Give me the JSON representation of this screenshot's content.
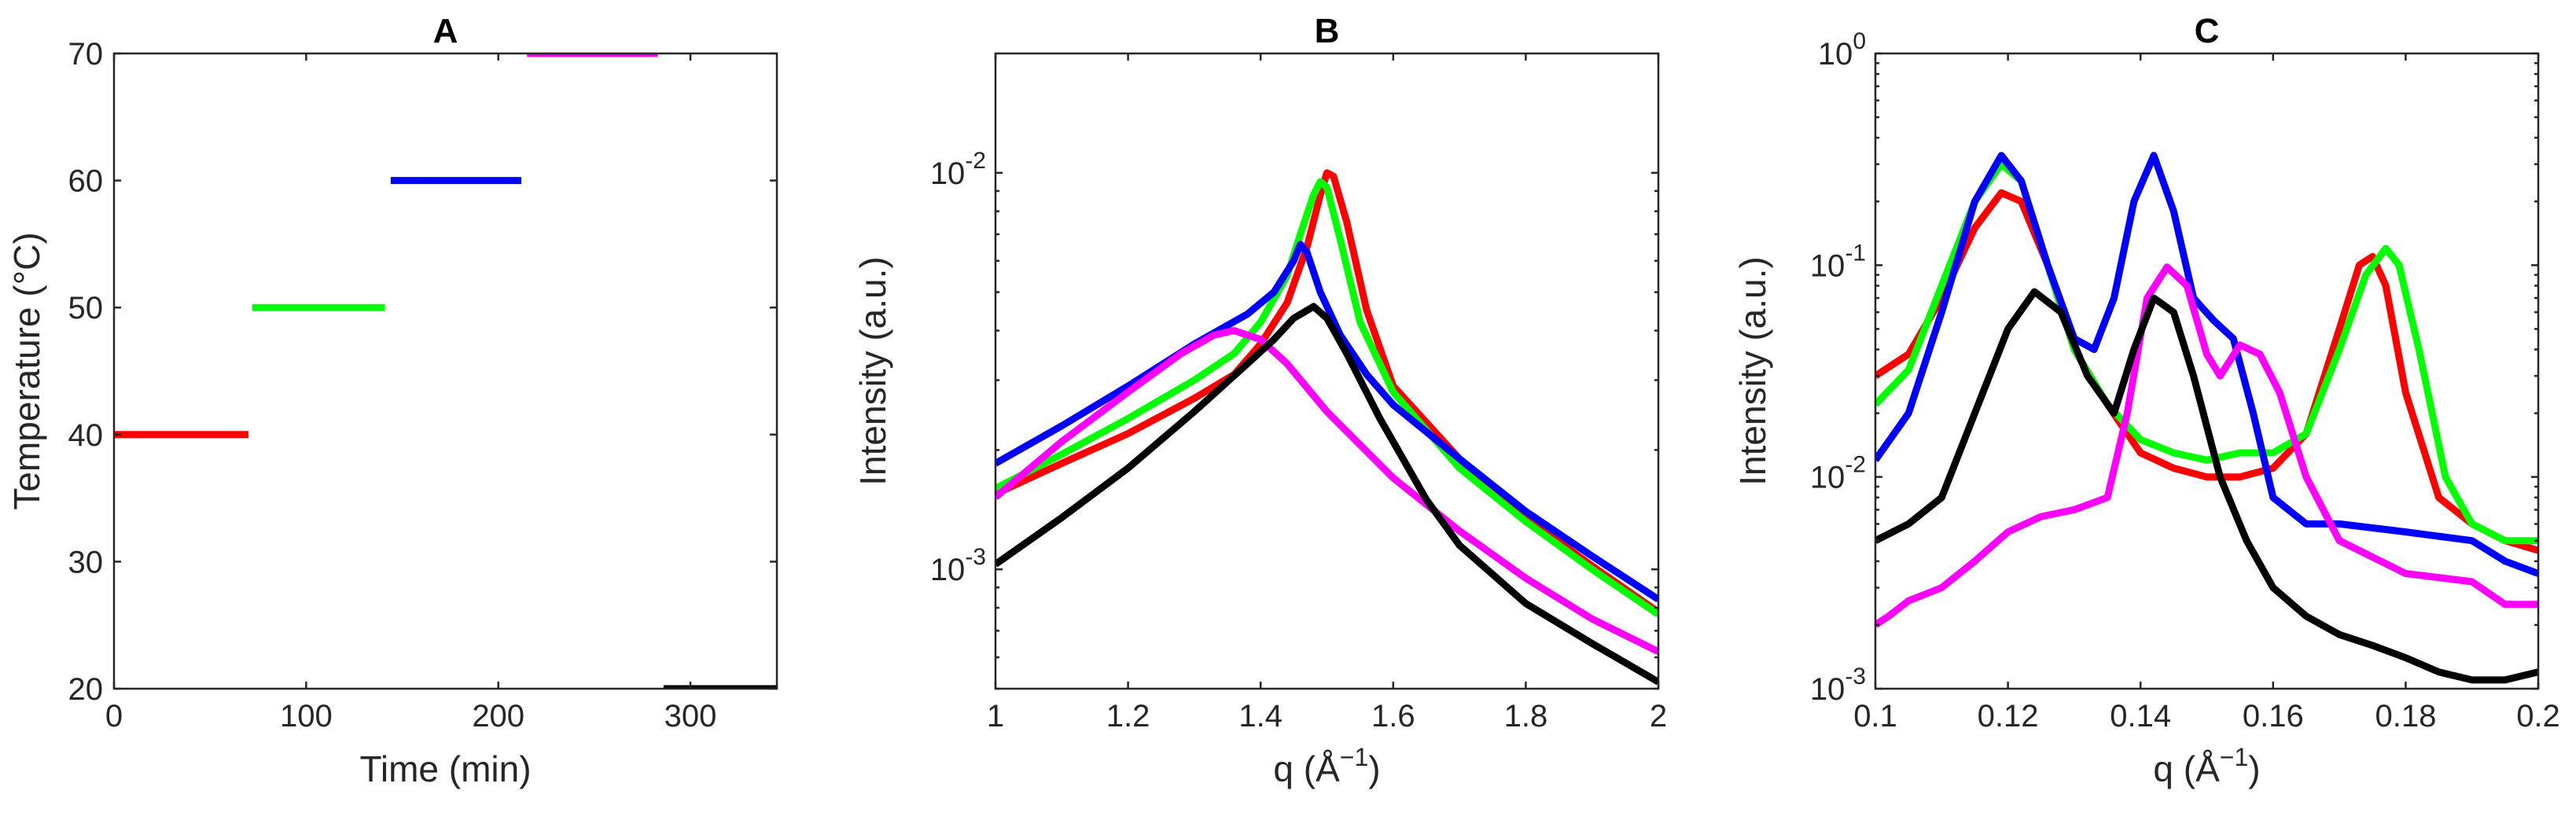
{
  "colors": {
    "red": "#ff0000",
    "green": "#00ff00",
    "blue": "#0000ff",
    "magenta": "#ff00ff",
    "black": "#000000"
  },
  "chart_data": [
    {
      "panel": "A",
      "type": "line",
      "title": "A",
      "xlabel": "Time (min)",
      "ylabel": "Temperature (°C)",
      "xlim": [
        0,
        345
      ],
      "ylim": [
        20,
        70
      ],
      "yscale": "linear",
      "xticks": [
        0,
        100,
        200,
        300
      ],
      "xtick_labels": [
        "0",
        "100",
        "200",
        "300"
      ],
      "yticks": [
        20,
        30,
        40,
        50,
        60,
        70
      ],
      "ytick_labels": [
        "20",
        "30",
        "40",
        "50",
        "60",
        "70"
      ],
      "series": [
        {
          "name": "40 °C",
          "color": "red",
          "x": [
            0,
            70
          ],
          "y": [
            40,
            40
          ]
        },
        {
          "name": "50 °C",
          "color": "green",
          "x": [
            72,
            141
          ],
          "y": [
            50,
            50
          ]
        },
        {
          "name": "60 °C",
          "color": "blue",
          "x": [
            144,
            212
          ],
          "y": [
            60,
            60
          ]
        },
        {
          "name": "70 °C",
          "color": "magenta",
          "x": [
            215,
            283
          ],
          "y": [
            70,
            70
          ]
        },
        {
          "name": "20 °C",
          "color": "black",
          "x": [
            286,
            345
          ],
          "y": [
            20,
            20
          ]
        }
      ]
    },
    {
      "panel": "B",
      "type": "line",
      "title": "B",
      "xlabel": "q (Å",
      "xlabel_sup": "−1",
      "xlabel_end": ")",
      "ylabel": "Intensity (a.u.)",
      "xlim": [
        1,
        2
      ],
      "ylim": [
        0.0005,
        0.02
      ],
      "yscale": "log",
      "xticks": [
        1,
        1.2,
        1.4,
        1.6,
        1.8,
        2
      ],
      "xtick_labels": [
        "1",
        "1.2",
        "1.4",
        "1.6",
        "1.8",
        "2"
      ],
      "yticks": [
        0.001,
        0.01
      ],
      "ytick_labels": [
        {
          "base": "10",
          "exp": "-3"
        },
        {
          "base": "10",
          "exp": "-2"
        }
      ],
      "series": [
        {
          "name": "40 °C",
          "color": "red",
          "x": [
            1.0,
            1.1,
            1.2,
            1.3,
            1.36,
            1.4,
            1.44,
            1.47,
            1.49,
            1.5,
            1.51,
            1.53,
            1.56,
            1.6,
            1.7,
            1.8,
            1.9,
            2.0
          ],
          "y": [
            0.00155,
            0.00185,
            0.0022,
            0.0027,
            0.0031,
            0.0037,
            0.0047,
            0.0065,
            0.0088,
            0.01,
            0.0098,
            0.0075,
            0.0045,
            0.0029,
            0.0019,
            0.00135,
            0.00102,
            0.00078
          ]
        },
        {
          "name": "50 °C",
          "color": "green",
          "x": [
            1.0,
            1.1,
            1.2,
            1.3,
            1.36,
            1.4,
            1.44,
            1.46,
            1.48,
            1.49,
            1.5,
            1.52,
            1.55,
            1.6,
            1.7,
            1.8,
            1.9,
            2.0
          ],
          "y": [
            0.0016,
            0.00195,
            0.0024,
            0.003,
            0.0035,
            0.0042,
            0.0055,
            0.007,
            0.0088,
            0.0095,
            0.0092,
            0.0068,
            0.0042,
            0.0028,
            0.0018,
            0.00132,
            0.001,
            0.00077
          ]
        },
        {
          "name": "60 °C",
          "color": "blue",
          "x": [
            1.0,
            1.1,
            1.2,
            1.3,
            1.38,
            1.42,
            1.45,
            1.46,
            1.47,
            1.49,
            1.52,
            1.56,
            1.6,
            1.7,
            1.8,
            1.9,
            2.0
          ],
          "y": [
            0.00185,
            0.0023,
            0.0029,
            0.0037,
            0.0044,
            0.005,
            0.006,
            0.0066,
            0.0063,
            0.005,
            0.0039,
            0.0031,
            0.0026,
            0.0019,
            0.0014,
            0.00108,
            0.00084
          ]
        },
        {
          "name": "70 °C",
          "color": "magenta",
          "x": [
            1.0,
            1.1,
            1.2,
            1.28,
            1.33,
            1.36,
            1.4,
            1.44,
            1.5,
            1.6,
            1.7,
            1.8,
            1.9,
            2.0
          ],
          "y": [
            0.00152,
            0.0021,
            0.0028,
            0.0035,
            0.0039,
            0.004,
            0.0038,
            0.0033,
            0.0025,
            0.0017,
            0.00125,
            0.00095,
            0.00075,
            0.00062
          ]
        },
        {
          "name": "20 °C",
          "color": "black",
          "x": [
            1.0,
            1.1,
            1.2,
            1.3,
            1.38,
            1.42,
            1.45,
            1.48,
            1.5,
            1.53,
            1.58,
            1.65,
            1.7,
            1.8,
            1.9,
            2.0
          ],
          "y": [
            0.00103,
            0.00135,
            0.0018,
            0.0025,
            0.0033,
            0.0038,
            0.0043,
            0.0046,
            0.0043,
            0.0035,
            0.0024,
            0.0015,
            0.00115,
            0.00082,
            0.00065,
            0.00052
          ]
        }
      ]
    },
    {
      "panel": "C",
      "type": "line",
      "title": "C",
      "xlabel": "q (Å",
      "xlabel_sup": "−1",
      "xlabel_end": ")",
      "ylabel": "Intensity (a.u.)",
      "xlim": [
        0.1,
        0.2
      ],
      "ylim": [
        0.001,
        1
      ],
      "yscale": "log",
      "xticks": [
        0.1,
        0.12,
        0.14,
        0.16,
        0.18,
        0.2
      ],
      "xtick_labels": [
        "0.1",
        "0.12",
        "0.14",
        "0.16",
        "0.18",
        "0.2"
      ],
      "yticks": [
        0.001,
        0.01,
        0.1,
        1
      ],
      "ytick_labels": [
        {
          "base": "10",
          "exp": "-3"
        },
        {
          "base": "10",
          "exp": "-2"
        },
        {
          "base": "10",
          "exp": "-1"
        },
        {
          "base": "10",
          "exp": "0"
        }
      ],
      "series": [
        {
          "name": "40 °C",
          "color": "red",
          "x": [
            0.1,
            0.105,
            0.11,
            0.115,
            0.119,
            0.122,
            0.126,
            0.13,
            0.135,
            0.14,
            0.145,
            0.15,
            0.155,
            0.16,
            0.165,
            0.17,
            0.173,
            0.175,
            0.177,
            0.18,
            0.185,
            0.19,
            0.195,
            0.2
          ],
          "y": [
            0.03,
            0.038,
            0.07,
            0.15,
            0.22,
            0.2,
            0.1,
            0.04,
            0.022,
            0.013,
            0.011,
            0.01,
            0.01,
            0.011,
            0.016,
            0.05,
            0.1,
            0.11,
            0.08,
            0.025,
            0.008,
            0.006,
            0.005,
            0.0045
          ]
        },
        {
          "name": "50 °C",
          "color": "green",
          "x": [
            0.1,
            0.105,
            0.11,
            0.115,
            0.119,
            0.122,
            0.126,
            0.13,
            0.135,
            0.14,
            0.145,
            0.15,
            0.155,
            0.16,
            0.165,
            0.17,
            0.174,
            0.177,
            0.179,
            0.182,
            0.186,
            0.19,
            0.195,
            0.2
          ],
          "y": [
            0.022,
            0.032,
            0.08,
            0.2,
            0.3,
            0.25,
            0.1,
            0.04,
            0.022,
            0.015,
            0.013,
            0.012,
            0.013,
            0.013,
            0.016,
            0.04,
            0.09,
            0.12,
            0.1,
            0.04,
            0.01,
            0.006,
            0.005,
            0.005
          ]
        },
        {
          "name": "60 °C",
          "color": "blue",
          "x": [
            0.1,
            0.105,
            0.11,
            0.115,
            0.119,
            0.122,
            0.126,
            0.13,
            0.133,
            0.136,
            0.139,
            0.142,
            0.145,
            0.148,
            0.151,
            0.154,
            0.157,
            0.16,
            0.165,
            0.17,
            0.18,
            0.19,
            0.195,
            0.2
          ],
          "y": [
            0.012,
            0.02,
            0.06,
            0.2,
            0.33,
            0.25,
            0.1,
            0.045,
            0.04,
            0.07,
            0.2,
            0.33,
            0.18,
            0.07,
            0.055,
            0.045,
            0.02,
            0.008,
            0.006,
            0.006,
            0.0055,
            0.005,
            0.004,
            0.0035
          ]
        },
        {
          "name": "70 °C",
          "color": "magenta",
          "x": [
            0.1,
            0.102,
            0.105,
            0.11,
            0.115,
            0.12,
            0.125,
            0.13,
            0.135,
            0.138,
            0.141,
            0.144,
            0.147,
            0.15,
            0.152,
            0.155,
            0.158,
            0.161,
            0.165,
            0.17,
            0.18,
            0.19,
            0.195,
            0.2
          ],
          "y": [
            0.002,
            0.0022,
            0.0026,
            0.003,
            0.004,
            0.0055,
            0.0065,
            0.007,
            0.008,
            0.02,
            0.07,
            0.098,
            0.08,
            0.038,
            0.03,
            0.042,
            0.038,
            0.025,
            0.01,
            0.005,
            0.0035,
            0.0032,
            0.0025,
            0.0025
          ]
        },
        {
          "name": "20 °C",
          "color": "black",
          "x": [
            0.1,
            0.105,
            0.11,
            0.115,
            0.12,
            0.124,
            0.128,
            0.132,
            0.136,
            0.139,
            0.142,
            0.145,
            0.148,
            0.152,
            0.156,
            0.16,
            0.165,
            0.17,
            0.175,
            0.18,
            0.185,
            0.19,
            0.195,
            0.2
          ],
          "y": [
            0.005,
            0.006,
            0.008,
            0.02,
            0.05,
            0.075,
            0.06,
            0.03,
            0.02,
            0.04,
            0.07,
            0.06,
            0.03,
            0.01,
            0.005,
            0.003,
            0.0022,
            0.0018,
            0.0016,
            0.0014,
            0.0012,
            0.0011,
            0.0011,
            0.0012
          ]
        }
      ]
    }
  ]
}
